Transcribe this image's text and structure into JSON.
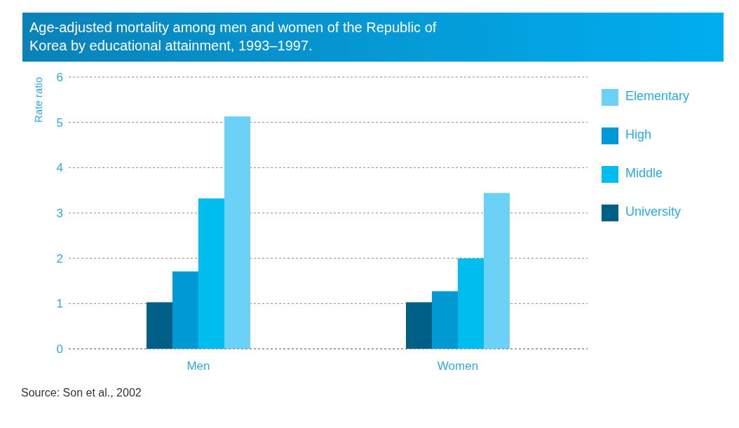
{
  "chart_data": {
    "type": "bar",
    "title": "Age-adjusted mortality among men and women of the Republic of Korea by educational attainment, 1993–1997.",
    "ylabel": "Rate ratio",
    "categories": [
      "Men",
      "Women"
    ],
    "series": [
      {
        "name": "University",
        "color": "#005f86",
        "values": [
          1.03,
          1.03
        ]
      },
      {
        "name": "High",
        "color": "#0099d4",
        "values": [
          1.71,
          1.27
        ]
      },
      {
        "name": "Middle",
        "color": "#00bdf0",
        "values": [
          3.32,
          2.0
        ]
      },
      {
        "name": "Elementary",
        "color": "#6bd1f6",
        "values": [
          5.13,
          3.44
        ]
      }
    ],
    "ylim": [
      0,
      6
    ],
    "yticks": [
      0,
      1,
      2,
      3,
      4,
      5,
      6
    ],
    "grid": "y",
    "legend": "top right",
    "annotations": [
      "Source: Son et al., 2002"
    ]
  }
}
